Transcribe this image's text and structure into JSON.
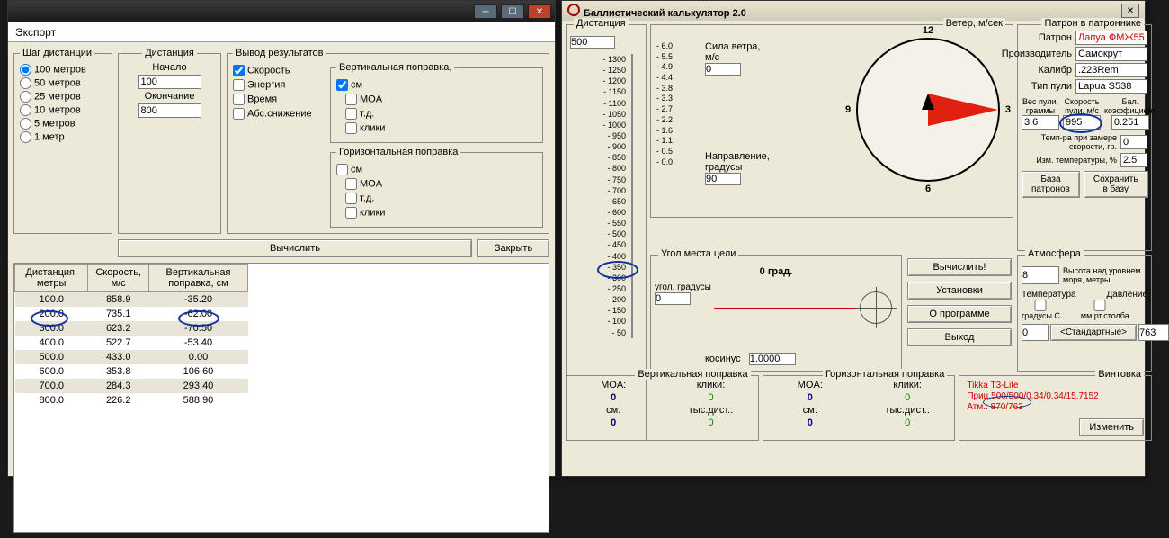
{
  "left": {
    "header": "Экспорт",
    "step": {
      "legend": "Шаг дистанции",
      "opts": [
        "100 метров",
        "50 метров",
        "25 метров",
        "10 метров",
        "5 метров",
        "1 метр"
      ],
      "selected": 0
    },
    "dist": {
      "legend": "Дистанция",
      "start_lbl": "Начало",
      "start": "100",
      "end_lbl": "Окончание",
      "end": "800"
    },
    "output": {
      "legend": "Вывод результатов",
      "speed": "Скорость",
      "energy": "Энергия",
      "time": "Время",
      "drop": "Абс.снижение",
      "vert": {
        "legend": "Вертикальная поправка,",
        "cm": "см",
        "moa": "MOA",
        "td": "т.д.",
        "clk": "клики"
      },
      "horz": {
        "legend": "Горизонтальная поправка",
        "cm": "см",
        "moa": "MOA",
        "td": "т.д.",
        "clk": "клики"
      }
    },
    "btn_calc": "Вычислить",
    "btn_close": "Закрыть",
    "table": {
      "h1": "Дистанция, метры",
      "h2": "Скорость, м/с",
      "h3": "Вертикальная поправка, см",
      "rows": [
        [
          "100.0",
          "858.9",
          "-35.20"
        ],
        [
          "200.0",
          "735.1",
          "-62.00"
        ],
        [
          "300.0",
          "623.2",
          "-70.50"
        ],
        [
          "400.0",
          "522.7",
          "-53.40"
        ],
        [
          "500.0",
          "433.0",
          "0.00"
        ],
        [
          "600.0",
          "353.8",
          "106.60"
        ],
        [
          "700.0",
          "284.3",
          "293.40"
        ],
        [
          "800.0",
          "226.2",
          "588.90"
        ]
      ]
    }
  },
  "right": {
    "title": "Баллистический калькулятор 2.0",
    "dist": {
      "legend": "Дистанция",
      "val": "500",
      "ticks": [
        "- 1300",
        "- 1250",
        "- 1200",
        "- 1150",
        "- 1100",
        "- 1050",
        "- 1000",
        "- 950",
        "- 900",
        "- 850",
        "- 800",
        "- 750",
        "- 700",
        "- 650",
        "- 600",
        "- 550",
        "- 500",
        "- 450",
        "- 400",
        "- 350",
        "- 300",
        "- 250",
        "- 200",
        "- 150",
        "- 100",
        "- 50"
      ]
    },
    "wind": {
      "legend": "Ветер, м/сек",
      "ticks": [
        "- 6.0",
        "- 5.5",
        "- 4.9",
        "- 4.4",
        "- 3.8",
        "- 3.3",
        "- 2.7",
        "- 2.2",
        "- 1.6",
        "- 1.1",
        "- 0.5",
        "- 0.0"
      ],
      "force_lbl": "Сила ветра, м/с",
      "force": "0",
      "dir_lbl": "Направление, градусы",
      "dir": "90",
      "clock": {
        "n12": "12",
        "n3": "3",
        "n6": "6",
        "n9": "9"
      }
    },
    "cart": {
      "legend": "Патрон в патроннике",
      "f1": "Патрон",
      "v1": "Лапуа ФМЖ55",
      "f2": "Производитель",
      "v2": "Самокрут",
      "f3": "Калибр",
      "v3": ".223Rem",
      "f4": "Тип пули",
      "v4": "Lapua S538",
      "bw_lbl": "Вес пули, граммы",
      "bw": "3.6",
      "bv_lbl": "Скорость пули, м/с",
      "bv": "995",
      "bc_lbl": "Бал. коэффициент",
      "bc": "0.251",
      "temp_lbl": "Темп-ра при замере скорости, гр.",
      "temp": "0",
      "dtemp_lbl": "Изм. температуры, %",
      "dtemp": "2.5",
      "btn_db": "База патронов",
      "btn_save": "Сохранить в базу"
    },
    "angle": {
      "legend": "Угол места цели",
      "deg": "0 град.",
      "ang_lbl": "угол, градусы",
      "ang": "0",
      "cos_lbl": "косинус",
      "cos": "1.0000"
    },
    "btns": {
      "calc": "Вычислить!",
      "setup": "Установки",
      "about": "О программе",
      "exit": "Выход"
    },
    "atm": {
      "legend": "Атмосфера",
      "alt_lbl": "Высота над уровнем моря, метры",
      "alt": "8",
      "t_lbl": "Температура",
      "t_unit": "градусы С",
      "t": "0",
      "p_lbl": "Давление",
      "p_unit": "мм.рт.столба",
      "p": "763",
      "std": "<Стандартные>"
    },
    "vcorr": {
      "legend": "Вертикальная поправка",
      "moa_l": "MOA:",
      "moa": "0",
      "clk_l": "клики:",
      "clk": "0",
      "cm_l": "см:",
      "cm": "0",
      "td_l": "тыс.дист.:",
      "td": "0"
    },
    "hcorr": {
      "legend": "Горизонтальная поправка",
      "moa_l": "MOA:",
      "moa": "0",
      "clk_l": "клики:",
      "clk": "0",
      "cm_l": "см:",
      "cm": "0",
      "td_l": "тыс.дист.:",
      "td": "0"
    },
    "rifle": {
      "legend": "Винтовка",
      "l1": "Tikka T3-Lite",
      "l2": "Приц.500/500/0.34/0.34/15.7152",
      "l3": "Атм.: 870/763",
      "btn": "Изменить"
    }
  }
}
